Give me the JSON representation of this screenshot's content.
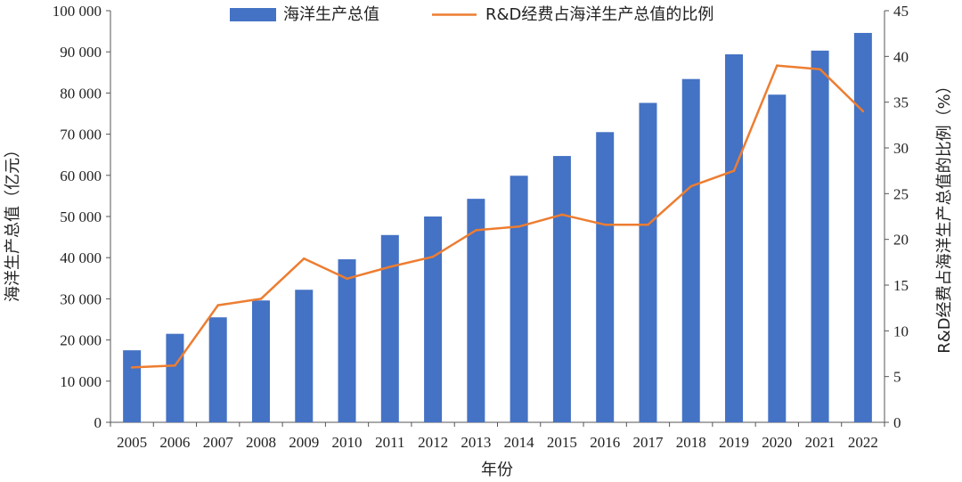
{
  "chart_data": {
    "type": "bar+line",
    "categories": [
      "2005",
      "2006",
      "2007",
      "2008",
      "2009",
      "2010",
      "2011",
      "2012",
      "2013",
      "2014",
      "2015",
      "2016",
      "2017",
      "2018",
      "2019",
      "2020",
      "2021",
      "2022"
    ],
    "series": [
      {
        "name": "海洋生产总值",
        "type": "bar",
        "axis": "left",
        "color": "#4472C4",
        "values": [
          17500,
          21500,
          25500,
          29600,
          32200,
          39600,
          45500,
          50000,
          54300,
          59900,
          64700,
          70500,
          77600,
          83400,
          89400,
          79600,
          90300,
          94600
        ]
      },
      {
        "name": "R&D经费占海洋生产总值的比例",
        "type": "line",
        "axis": "right",
        "color": "#ED7D31",
        "values": [
          6.0,
          6.2,
          12.8,
          13.5,
          17.9,
          15.7,
          17.0,
          18.1,
          21.0,
          21.4,
          22.7,
          21.6,
          21.6,
          25.8,
          27.5,
          39.0,
          38.6,
          34.0
        ]
      }
    ],
    "y_left": {
      "label": "海洋生产总值（亿元）",
      "ylim": [
        0,
        100000
      ],
      "ticks": [
        "0",
        "10 000",
        "20 000",
        "30 000",
        "40 000",
        "50 000",
        "60 000",
        "70 000",
        "80 000",
        "90 000",
        "100 000"
      ]
    },
    "y_right": {
      "label": "R&D经费占海洋生产总值的比例（%）",
      "ylim": [
        0,
        45
      ],
      "ticks": [
        "0",
        "5",
        "10",
        "15",
        "20",
        "25",
        "30",
        "35",
        "40",
        "45"
      ]
    },
    "xlabel": "年份",
    "grid": false,
    "legend": "top-center"
  }
}
